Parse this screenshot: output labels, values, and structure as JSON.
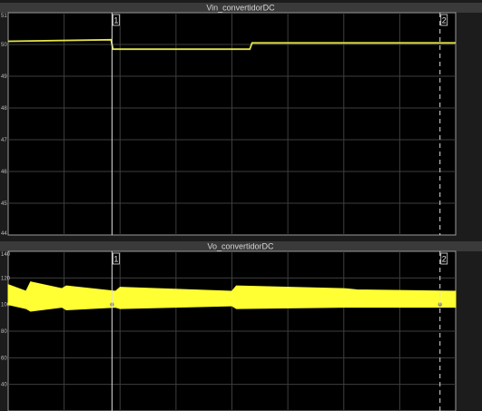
{
  "chart_data": [
    {
      "type": "line",
      "title": "Vin_convertidorDC",
      "ylim": [
        44,
        51
      ],
      "yticks": [
        "51",
        "50",
        "49",
        "48",
        "47",
        "46",
        "45",
        "44"
      ],
      "grid": true,
      "x": [
        0,
        0.23,
        0.234,
        0.54,
        0.545,
        1.0
      ],
      "series": [
        {
          "color": "#e3e34a",
          "values": [
            50.1,
            50.15,
            49.85,
            49.85,
            50.05,
            50.05
          ]
        }
      ],
      "cursors": [
        {
          "label": "1",
          "x": 0.232,
          "style": "solid"
        },
        {
          "label": "2",
          "x": 0.965,
          "style": "dashed"
        }
      ]
    },
    {
      "type": "area",
      "title": "Vo_convertidorDC",
      "ylim": [
        20,
        140
      ],
      "yticks": [
        "140",
        "120",
        "100",
        "80",
        "60",
        "40"
      ],
      "grid": true,
      "x": [
        0,
        0.04,
        0.05,
        0.12,
        0.13,
        0.24,
        0.25,
        0.5,
        0.51,
        0.75,
        0.78,
        1.0
      ],
      "series": [
        {
          "color": "#ffff33",
          "upper": [
            115,
            110,
            117,
            112,
            114,
            110,
            113,
            110,
            114,
            112,
            111,
            110
          ],
          "lower": [
            100,
            97,
            95,
            98,
            96,
            98,
            97,
            99,
            97,
            98,
            98,
            98
          ]
        }
      ],
      "cursors": [
        {
          "label": "1",
          "x": 0.232,
          "style": "solid"
        },
        {
          "label": "2",
          "x": 0.965,
          "style": "dashed"
        }
      ]
    }
  ]
}
